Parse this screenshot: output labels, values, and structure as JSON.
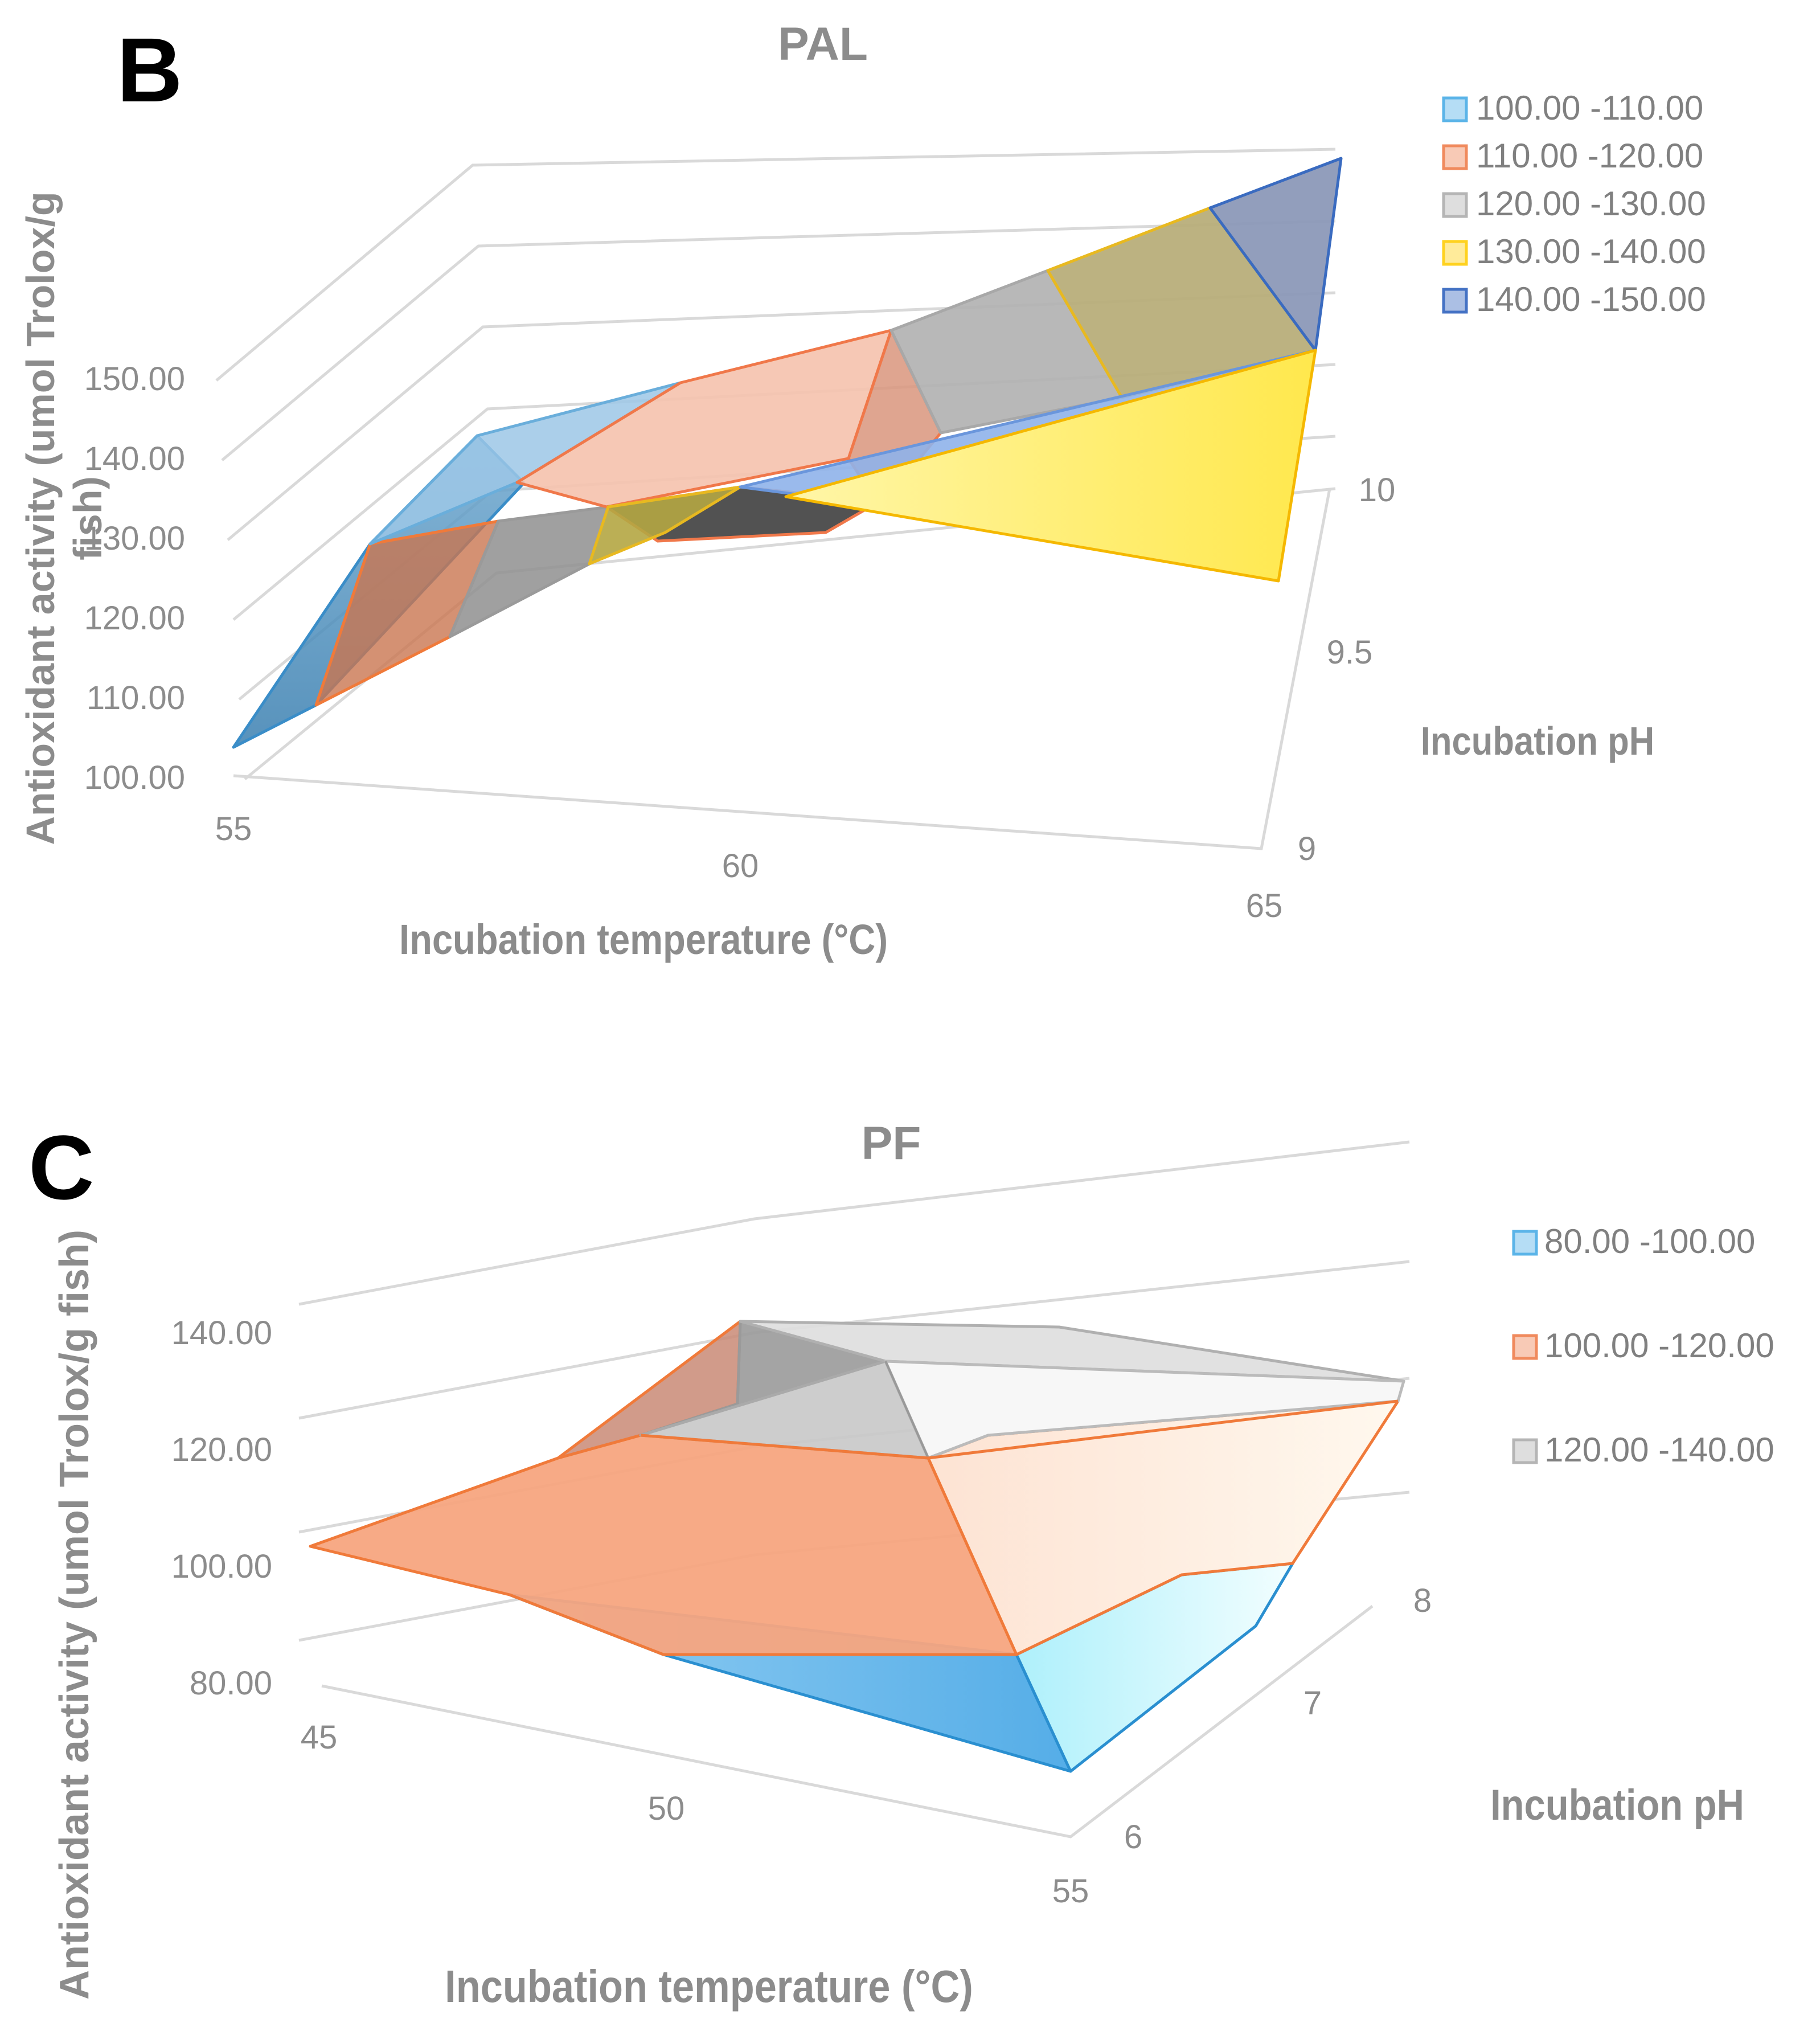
{
  "chart_data": [
    {
      "type": "surface3d",
      "panel_label": "B",
      "title": "PAL",
      "xlabel": "Incubation temperature (°C)",
      "ylabel": "Antioxidant activity (umol Trolox/g fish)",
      "zlabel": "Incubation pH",
      "x_ticks": [
        "55",
        "60",
        "65"
      ],
      "ph_ticks": [
        "9",
        "9.5",
        "10"
      ],
      "z_ticks": [
        "100.00",
        "110.00",
        "120.00",
        "130.00",
        "140.00",
        "150.00"
      ],
      "legend": [
        {
          "label": "100.00 -110.00",
          "color": "#5bb4e8"
        },
        {
          "label": "110.00 -120.00",
          "color": "#f08a5d"
        },
        {
          "label": "120.00 -130.00",
          "color": "#b5b5b5"
        },
        {
          "label": "130.00 -140.00",
          "color": "#ffd21f"
        },
        {
          "label": "140.00 -150.00",
          "color": "#4472c4"
        }
      ],
      "legend_position": "right"
    },
    {
      "type": "surface3d",
      "panel_label": "C",
      "title": "PF",
      "xlabel": "Incubation temperature (°C)",
      "ylabel": "Antioxidant  activity  (umol  Trolox/g  fish)",
      "zlabel": "Incubation pH",
      "x_ticks": [
        "45",
        "50",
        "55"
      ],
      "ph_ticks": [
        "6",
        "7",
        "8"
      ],
      "z_ticks": [
        "80.00",
        "100.00",
        "120.00",
        "140.00"
      ],
      "legend": [
        {
          "label": "80.00 -100.00",
          "color": "#5bb4e8"
        },
        {
          "label": "100.00 -120.00",
          "color": "#f08a5d"
        },
        {
          "label": "120.00 -140.00",
          "color": "#b5b5b5"
        }
      ],
      "legend_position": "right"
    }
  ]
}
